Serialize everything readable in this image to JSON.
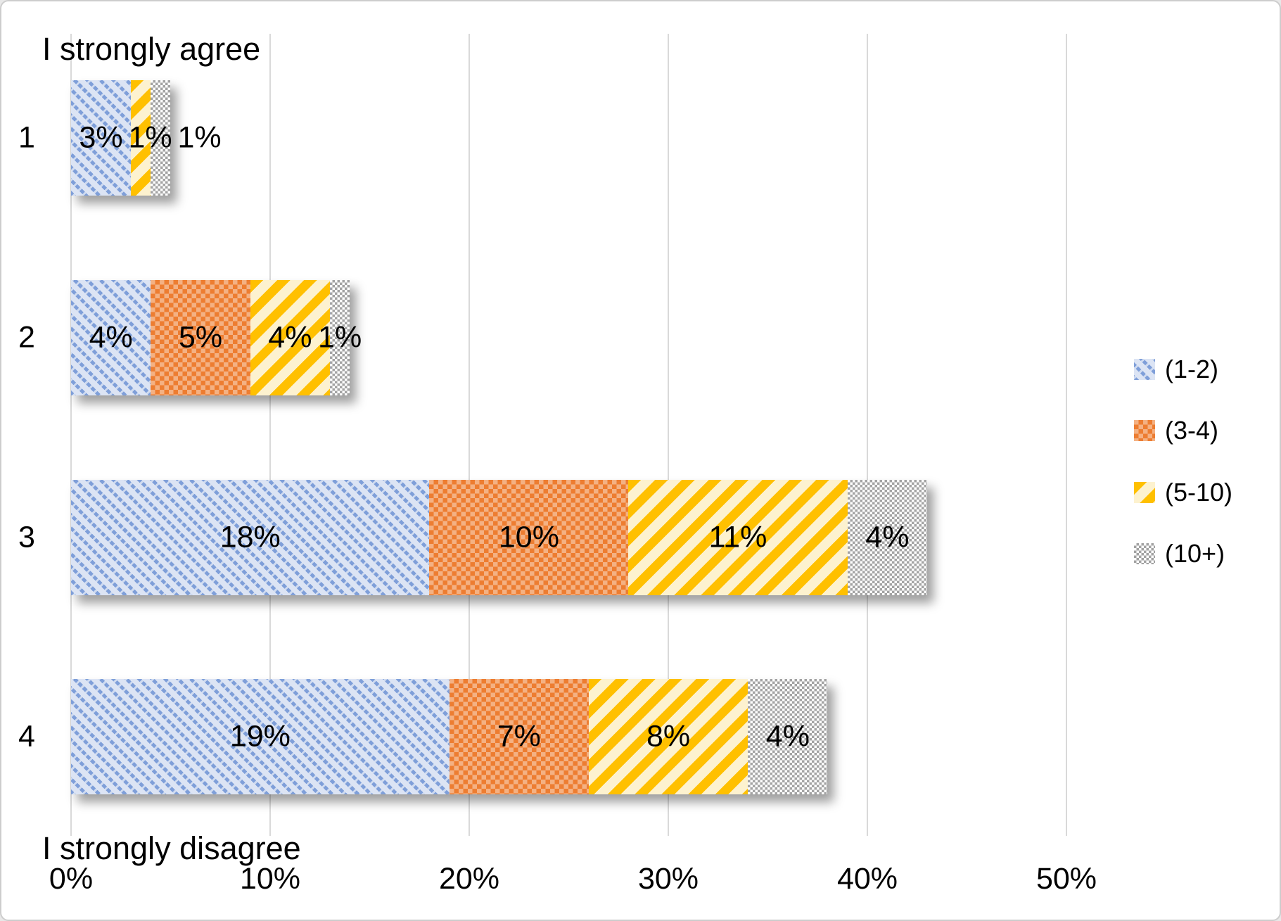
{
  "chart_data": {
    "type": "bar",
    "orientation": "horizontal",
    "stacked": true,
    "top_axis_caption": "I strongly agree",
    "bottom_axis_caption": "I strongly disagree",
    "categories": [
      "1",
      "2",
      "3",
      "4"
    ],
    "series": [
      {
        "name": "(1-2)",
        "pattern": "blue-diagonal",
        "color": "#7f9fd9",
        "bg": "#dce4f4",
        "values": [
          3,
          4,
          18,
          19
        ]
      },
      {
        "name": "(3-4)",
        "pattern": "orange-checker",
        "color": "#ed7d31",
        "bg": "#f4b183",
        "values": [
          0,
          5,
          10,
          7
        ]
      },
      {
        "name": "(5-10)",
        "pattern": "yellow-diagonal",
        "color": "#ffc000",
        "bg": "#fdf2cf",
        "values": [
          1,
          4,
          11,
          8
        ]
      },
      {
        "name": "(10+)",
        "pattern": "gray-checker",
        "color": "#a3a3a3",
        "bg": "#ffffff",
        "values": [
          1,
          1,
          4,
          4
        ]
      }
    ],
    "data_labels": [
      [
        "3%",
        "",
        "1%",
        "1%"
      ],
      [
        "4%",
        "5%",
        "4%",
        "1%"
      ],
      [
        "18%",
        "10%",
        "11%",
        "4%"
      ],
      [
        "19%",
        "7%",
        "8%",
        "4%"
      ]
    ],
    "x_ticks": [
      "0%",
      "10%",
      "20%",
      "30%",
      "40%",
      "50%"
    ],
    "x_range": [
      0,
      50
    ],
    "grid": true,
    "legend_position": "right",
    "colors": {
      "gridline": "#d9d9d9",
      "text": "#000000",
      "background": "#ffffff",
      "border": "#cdcdcd"
    }
  }
}
